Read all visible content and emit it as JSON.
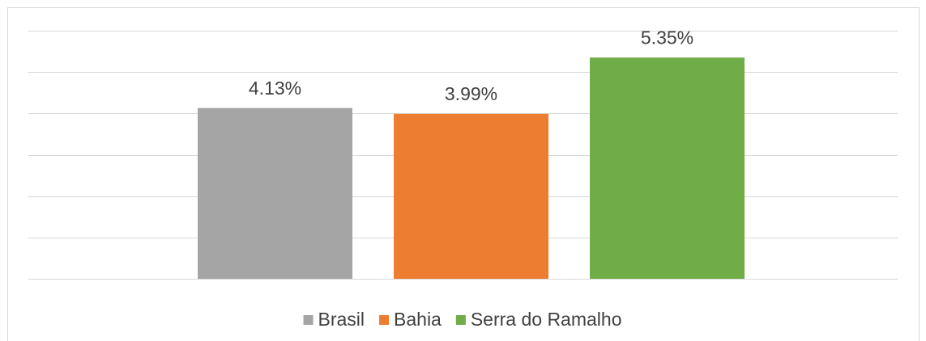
{
  "chart_data": {
    "type": "bar",
    "categories": [
      null
    ],
    "series": [
      {
        "name": "Brasil",
        "color": "#a5a5a5",
        "values": [
          4.13
        ],
        "value_labels": [
          "4.13%"
        ]
      },
      {
        "name": "Bahia",
        "color": "#ed7d31",
        "values": [
          3.99
        ],
        "value_labels": [
          "3.99%"
        ]
      },
      {
        "name": "Serra do Ramalho",
        "color": "#70ad47",
        "values": [
          5.35
        ],
        "value_labels": [
          "5.35%"
        ]
      }
    ],
    "ylim": [
      0,
      6
    ],
    "yticks": [
      0,
      1,
      2,
      3,
      4,
      5,
      6
    ],
    "grid": true,
    "legend": "bottom"
  }
}
